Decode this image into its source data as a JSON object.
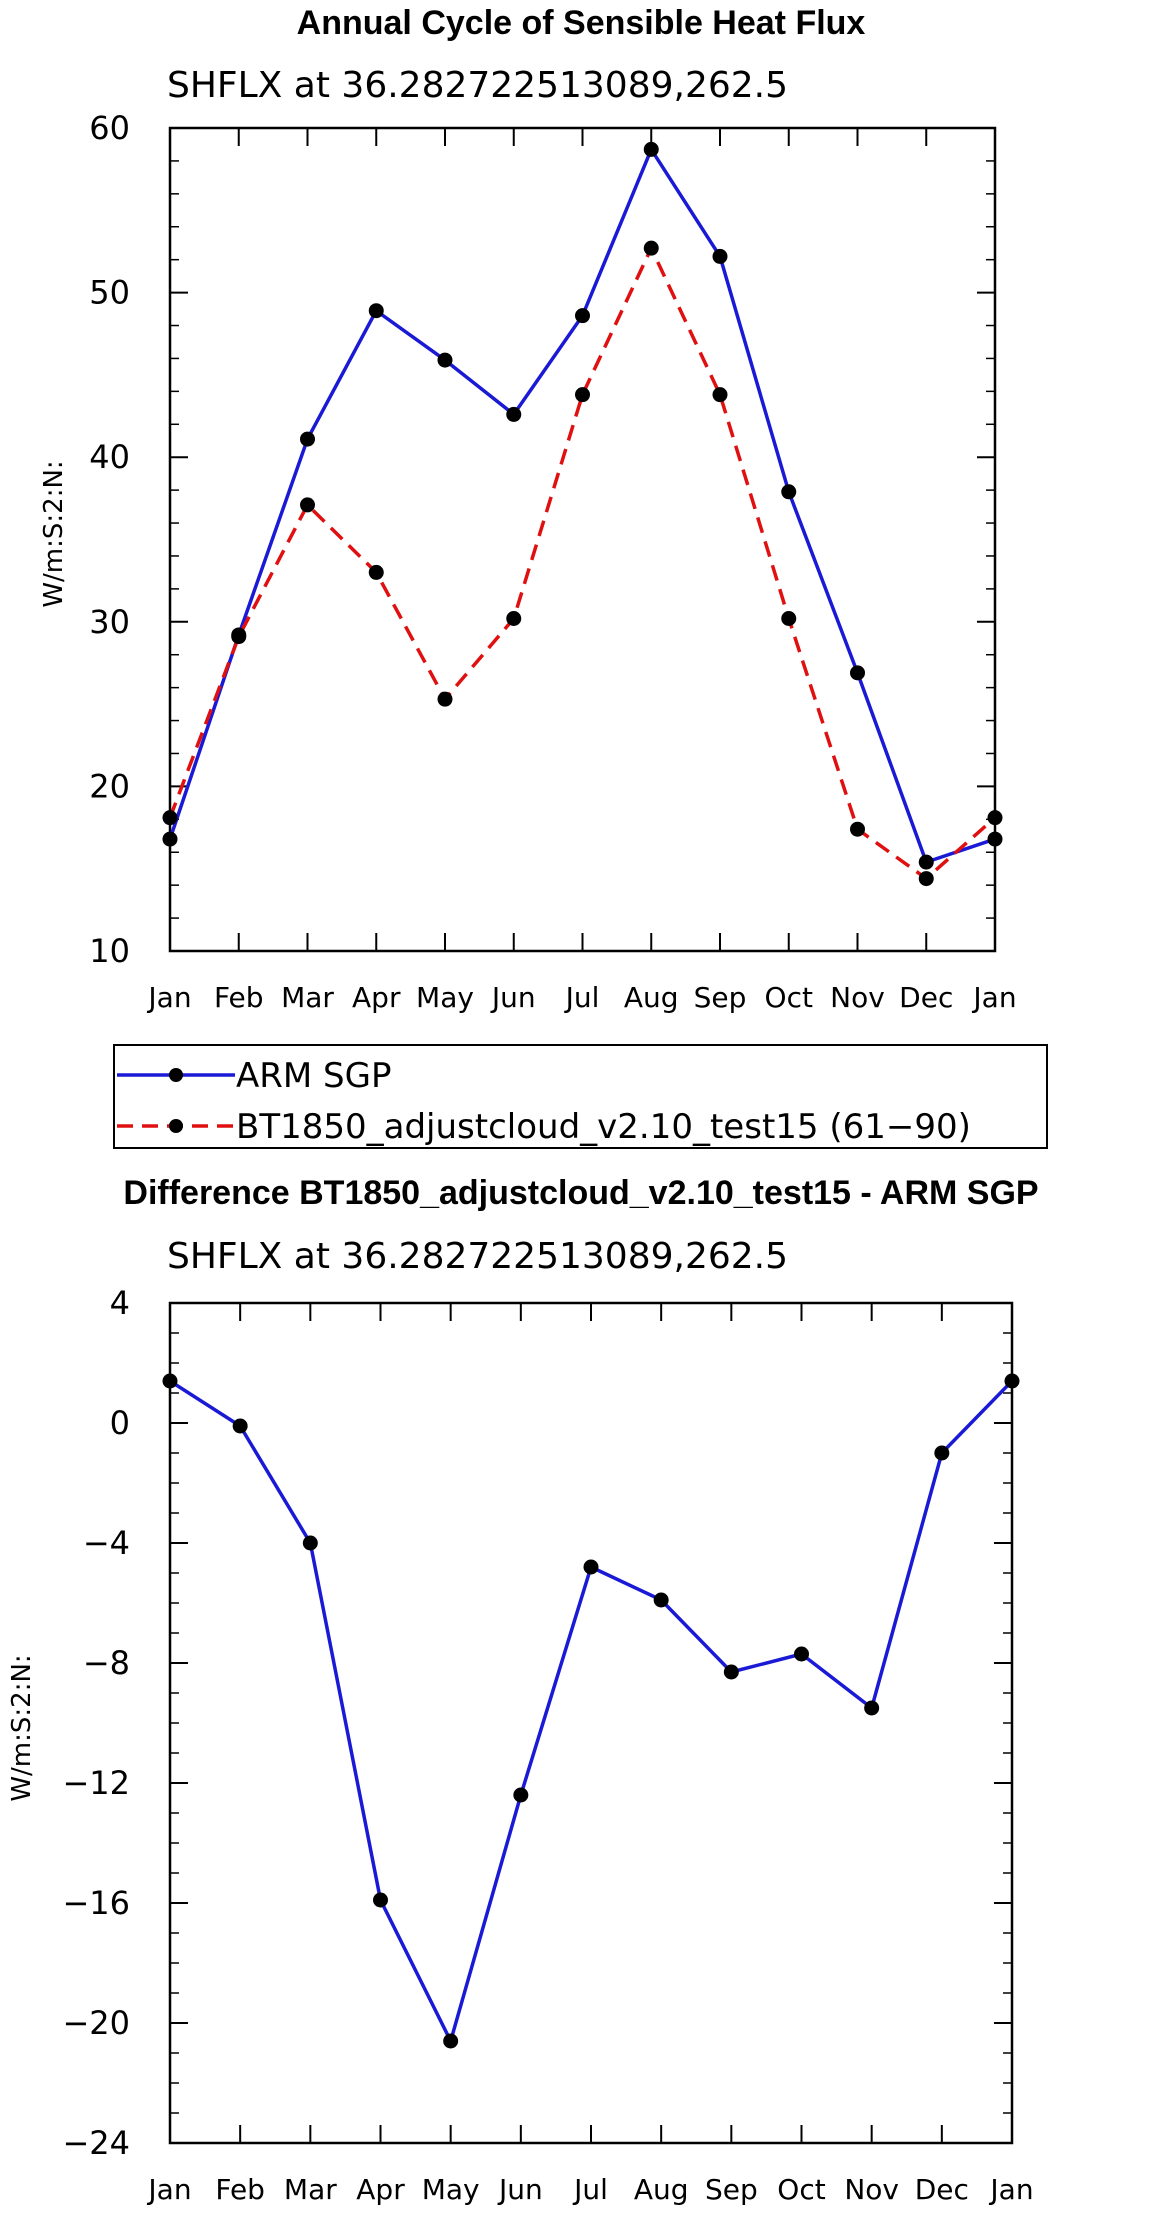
{
  "chart_data": [
    {
      "type": "line",
      "title": "Annual Cycle of Sensible Heat Flux",
      "subtitle": "SHFLX at 36.282722513089,262.5",
      "ylabel": "W/m:S:2:N:",
      "xlabel": "",
      "categories": [
        "Jan",
        "Feb",
        "Mar",
        "Apr",
        "May",
        "Jun",
        "Jul",
        "Aug",
        "Sep",
        "Oct",
        "Nov",
        "Dec",
        "Jan"
      ],
      "ylim": [
        10,
        60
      ],
      "yticks": [
        "10",
        "20",
        "30",
        "40",
        "50",
        "60"
      ],
      "series": [
        {
          "name": "ARM SGP",
          "color": "#1a1ad6",
          "dash": "solid",
          "values": [
            16.8,
            29.2,
            41.1,
            48.9,
            45.9,
            42.6,
            48.6,
            58.7,
            52.2,
            37.9,
            26.9,
            15.4,
            16.8
          ]
        },
        {
          "name": "BT1850_adjustcloud_v2.10_test15 (61−90)",
          "color": "#e01010",
          "dash": "dashed",
          "values": [
            18.1,
            29.1,
            37.1,
            33.0,
            25.3,
            30.2,
            43.8,
            52.7,
            43.8,
            30.2,
            17.4,
            14.4,
            18.1
          ]
        }
      ]
    },
    {
      "type": "line",
      "title": "Difference BT1850_adjustcloud_v2.10_test15 - ARM SGP",
      "subtitle": "SHFLX at 36.282722513089,262.5",
      "ylabel": "W/m:S:2:N:",
      "xlabel": "",
      "categories": [
        "Jan",
        "Feb",
        "Mar",
        "Apr",
        "May",
        "Jun",
        "Jul",
        "Aug",
        "Sep",
        "Oct",
        "Nov",
        "Dec",
        "Jan"
      ],
      "ylim": [
        -24,
        4
      ],
      "yticks": [
        "−24",
        "−20",
        "−16",
        "−12",
        "−8",
        "−4",
        "0",
        "4"
      ],
      "series": [
        {
          "name": "Difference",
          "color": "#1a1ad6",
          "dash": "solid",
          "values": [
            1.4,
            -0.1,
            -4.0,
            -15.9,
            -20.6,
            -12.4,
            -4.8,
            -5.9,
            -8.3,
            -7.7,
            -9.5,
            -1.0,
            1.4
          ]
        }
      ]
    }
  ]
}
